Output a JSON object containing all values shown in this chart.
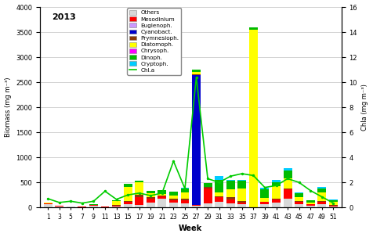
{
  "weeks": [
    1,
    3,
    5,
    7,
    9,
    11,
    13,
    15,
    17,
    19,
    21,
    23,
    25,
    27,
    29,
    31,
    33,
    35,
    37,
    39,
    41,
    43,
    45,
    47,
    49,
    51
  ],
  "others": [
    60,
    20,
    15,
    8,
    40,
    8,
    20,
    60,
    50,
    100,
    180,
    100,
    80,
    30,
    80,
    120,
    80,
    60,
    0,
    60,
    100,
    180,
    70,
    40,
    70,
    25
  ],
  "mesodinium": [
    15,
    8,
    4,
    4,
    8,
    4,
    15,
    60,
    150,
    80,
    40,
    50,
    60,
    20,
    300,
    80,
    80,
    40,
    0,
    50,
    60,
    180,
    40,
    25,
    50,
    15
  ],
  "euglenoph": [
    0,
    0,
    0,
    0,
    0,
    0,
    0,
    0,
    0,
    0,
    0,
    0,
    0,
    0,
    0,
    0,
    0,
    0,
    0,
    0,
    0,
    0,
    0,
    0,
    0,
    0
  ],
  "cyanobact": [
    0,
    0,
    0,
    0,
    0,
    0,
    0,
    0,
    0,
    0,
    0,
    0,
    0,
    2600,
    0,
    0,
    0,
    0,
    0,
    0,
    0,
    0,
    0,
    0,
    0,
    0
  ],
  "prymnesioph": [
    8,
    4,
    4,
    4,
    8,
    4,
    8,
    15,
    60,
    25,
    15,
    25,
    40,
    15,
    25,
    25,
    50,
    25,
    0,
    8,
    15,
    25,
    15,
    8,
    15,
    8
  ],
  "diatom": [
    8,
    4,
    0,
    4,
    0,
    0,
    80,
    280,
    250,
    80,
    40,
    60,
    120,
    40,
    0,
    80,
    160,
    250,
    3550,
    80,
    250,
    200,
    80,
    25,
    160,
    60
  ],
  "chrysoph": [
    0,
    0,
    0,
    0,
    0,
    0,
    0,
    0,
    0,
    0,
    0,
    0,
    0,
    0,
    0,
    0,
    0,
    0,
    0,
    0,
    0,
    0,
    0,
    0,
    0,
    0
  ],
  "dinoph": [
    8,
    4,
    4,
    4,
    15,
    4,
    15,
    60,
    25,
    40,
    80,
    80,
    80,
    40,
    80,
    250,
    160,
    160,
    40,
    160,
    80,
    160,
    80,
    40,
    80,
    40
  ],
  "cryptoph": [
    0,
    0,
    0,
    0,
    0,
    0,
    0,
    0,
    0,
    0,
    0,
    0,
    15,
    0,
    0,
    80,
    25,
    15,
    0,
    40,
    40,
    40,
    15,
    8,
    40,
    15
  ],
  "chla": [
    0.7,
    0.4,
    0.5,
    0.35,
    0.5,
    1.3,
    0.65,
    1.0,
    1.15,
    0.95,
    1.15,
    3.7,
    1.5,
    10.4,
    2.3,
    2.0,
    2.5,
    2.7,
    2.55,
    1.6,
    1.75,
    2.3,
    2.0,
    1.35,
    0.85,
    0.35
  ],
  "colors": {
    "others": "#d8d8d8",
    "mesodinium": "#ff0000",
    "euglenoph": "#cc99ff",
    "cyanobact": "#0000cc",
    "prymnesioph": "#8B3A0A",
    "diatom": "#ffff00",
    "chrysoph": "#ff00ff",
    "dinoph": "#00bb00",
    "cryptoph": "#00ccff"
  },
  "title": "2013",
  "xlabel": "Week",
  "ylabel_left": "Biomass (mg m⁻³)",
  "ylabel_right": "Chla (mg m⁻³)",
  "ylim_left": [
    0,
    4000
  ],
  "ylim_right": [
    0,
    16
  ],
  "yticks_left": [
    0,
    500,
    1000,
    1500,
    2000,
    2500,
    3000,
    3500,
    4000
  ],
  "yticks_right": [
    0,
    2,
    4,
    6,
    8,
    10,
    12,
    14,
    16
  ],
  "chla_color": "#00cc00",
  "bg_color": "#ffffff",
  "grid_color": "#cccccc"
}
